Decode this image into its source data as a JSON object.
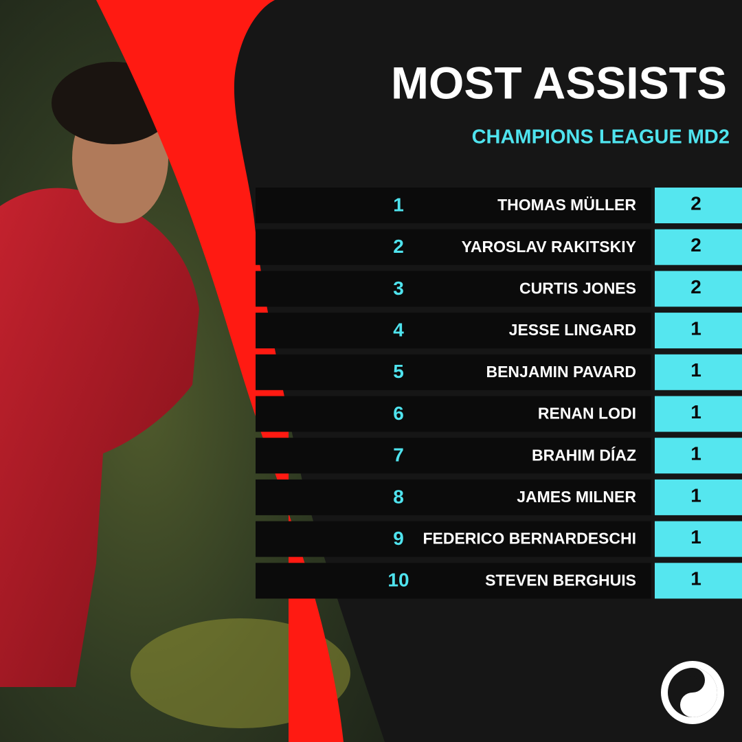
{
  "header": {
    "title": "MOST ASSISTS",
    "subtitle": "CHAMPIONS LEAGUE MD2"
  },
  "table": {
    "rows": [
      {
        "rank": "1",
        "player": "THOMAS MÜLLER",
        "assists": "2"
      },
      {
        "rank": "2",
        "player": "YAROSLAV RAKITSKIY",
        "assists": "2"
      },
      {
        "rank": "3",
        "player": "CURTIS JONES",
        "assists": "2"
      },
      {
        "rank": "4",
        "player": "JESSE LINGARD",
        "assists": "1"
      },
      {
        "rank": "5",
        "player": "BENJAMIN PAVARD",
        "assists": "1"
      },
      {
        "rank": "6",
        "player": "RENAN LODI",
        "assists": "1"
      },
      {
        "rank": "7",
        "player": "BRAHIM DÍAZ",
        "assists": "1"
      },
      {
        "rank": "8",
        "player": "JAMES MILNER",
        "assists": "1"
      },
      {
        "rank": "9",
        "player": "FEDERICO BERNARDESCHI",
        "assists": "1"
      },
      {
        "rank": "10",
        "player": "STEVEN BERGHUIS",
        "assists": "1"
      }
    ]
  }
}
